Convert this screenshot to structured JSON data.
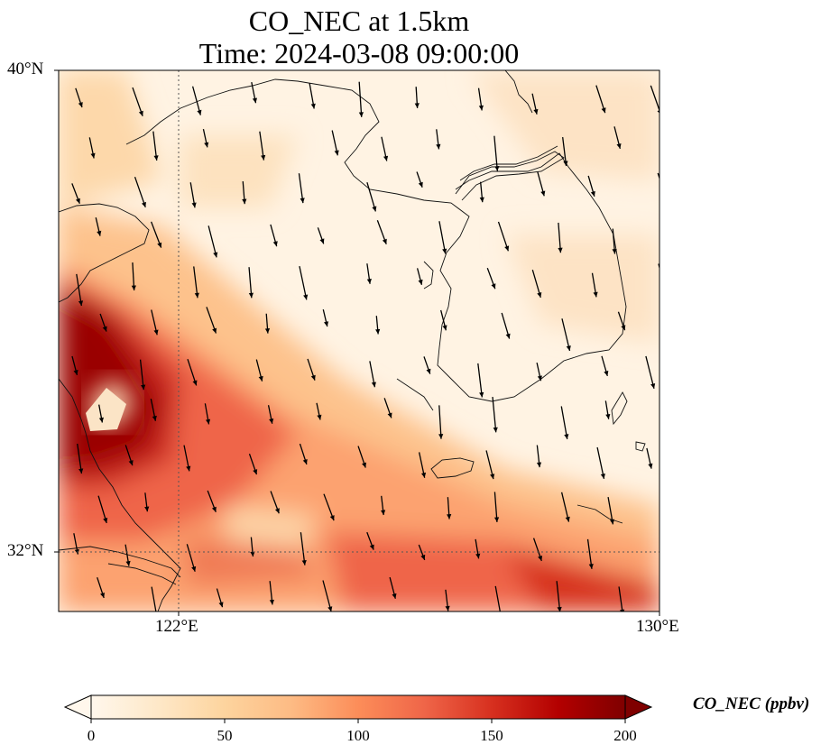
{
  "title_line_1": "CO_NEC at 1.5km",
  "title_line_2": "Time: 2024-03-08 09:00:00",
  "map": {
    "lat_range": [
      31.0,
      40.0
    ],
    "lon_range": [
      120.0,
      130.0
    ],
    "lat_ticks": [
      "40°N",
      "32°N"
    ],
    "lon_ticks": [
      "122°E",
      "130°E"
    ],
    "gridlines": {
      "lat": 32,
      "lon": 122,
      "style": "dotted"
    },
    "colormap": "OrRd",
    "wind_vector_direction": "from north-northwest"
  },
  "colorbar": {
    "title": "CO_NEC (ppbv)",
    "ticks": [
      "0",
      "50",
      "100",
      "150",
      "200"
    ],
    "range": [
      0,
      200
    ],
    "extend": "both",
    "colors": [
      "#fff7ec",
      "#fee8c8",
      "#fdd49e",
      "#fdbb84",
      "#fc8d59",
      "#ef6548",
      "#d7301f",
      "#b30000",
      "#7f0000"
    ]
  }
}
